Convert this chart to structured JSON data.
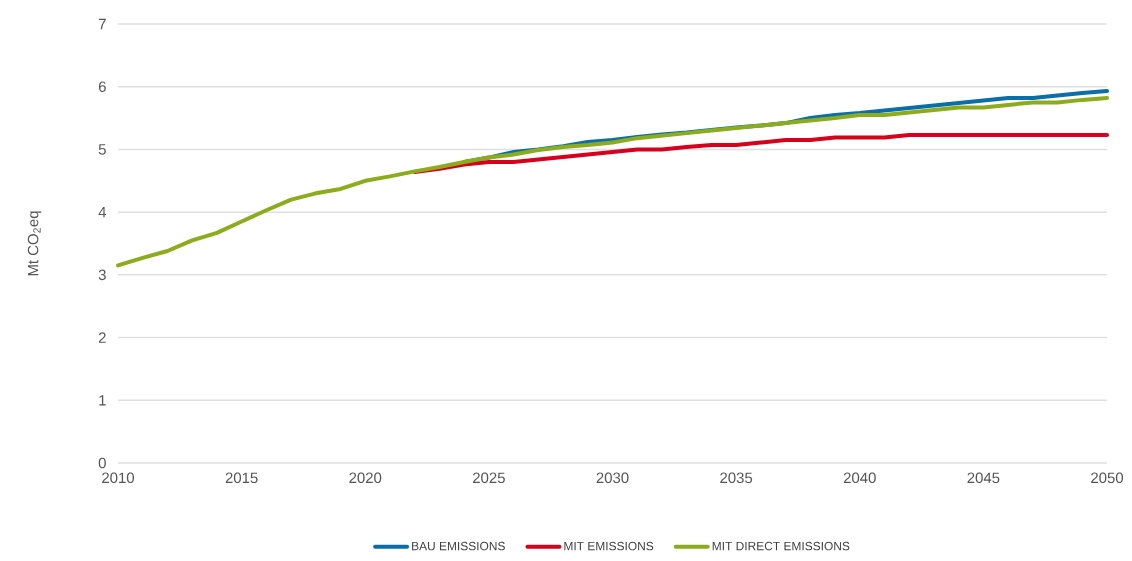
{
  "chart_data": {
    "type": "line",
    "ylabel": "Mt CO$_{2}$eq",
    "x": [
      2010,
      2011,
      2012,
      2013,
      2014,
      2015,
      2016,
      2017,
      2018,
      2019,
      2020,
      2021,
      2022,
      2023,
      2024,
      2025,
      2026,
      2027,
      2028,
      2029,
      2030,
      2031,
      2032,
      2033,
      2034,
      2035,
      2036,
      2037,
      2038,
      2039,
      2040,
      2041,
      2042,
      2043,
      2044,
      2045,
      2046,
      2047,
      2048,
      2049,
      2050
    ],
    "series": [
      {
        "name": "BAU EMISSIONS",
        "color": "#0a6fa8",
        "values": [
          null,
          null,
          null,
          null,
          null,
          null,
          null,
          null,
          null,
          null,
          null,
          null,
          null,
          null,
          4.8,
          4.87,
          4.96,
          5.0,
          5.05,
          5.12,
          5.15,
          5.2,
          5.24,
          5.27,
          5.31,
          5.35,
          5.38,
          5.42,
          5.5,
          5.55,
          5.58,
          5.62,
          5.66,
          5.7,
          5.74,
          5.78,
          5.82,
          5.82,
          5.86,
          5.9,
          5.93
        ]
      },
      {
        "name": "MIT EMISSIONS",
        "color": "#d7001c",
        "values": [
          null,
          null,
          null,
          null,
          null,
          null,
          null,
          null,
          null,
          null,
          null,
          null,
          4.64,
          4.69,
          4.76,
          4.8,
          4.8,
          4.84,
          4.88,
          4.92,
          4.96,
          5.0,
          5.0,
          5.04,
          5.07,
          5.07,
          5.11,
          5.15,
          5.15,
          5.19,
          5.19,
          5.19,
          5.23,
          5.23,
          5.23,
          5.23,
          5.23,
          5.23,
          5.23,
          5.23,
          5.23
        ]
      },
      {
        "name": "MIT DIRECT EMISSIONS",
        "color": "#8cac1e",
        "values": [
          3.15,
          3.27,
          3.38,
          3.55,
          3.67,
          3.85,
          4.03,
          4.2,
          4.3,
          4.37,
          4.5,
          4.57,
          4.65,
          4.72,
          4.8,
          4.87,
          4.92,
          4.99,
          5.04,
          5.07,
          5.11,
          5.18,
          5.22,
          5.26,
          5.3,
          5.34,
          5.38,
          5.42,
          5.46,
          5.5,
          5.55,
          5.55,
          5.59,
          5.63,
          5.67,
          5.67,
          5.71,
          5.75,
          5.75,
          5.79,
          5.82
        ]
      }
    ],
    "xlim": [
      2010,
      2050
    ],
    "xticks": [
      2010,
      2015,
      2020,
      2025,
      2030,
      2035,
      2040,
      2045,
      2050
    ],
    "ylim": [
      0,
      7
    ],
    "yticks": [
      0,
      1,
      2,
      3,
      4,
      5,
      6,
      7
    ],
    "grid": "y",
    "legend": "bottom",
    "marker": "none",
    "line_style": "solid"
  }
}
